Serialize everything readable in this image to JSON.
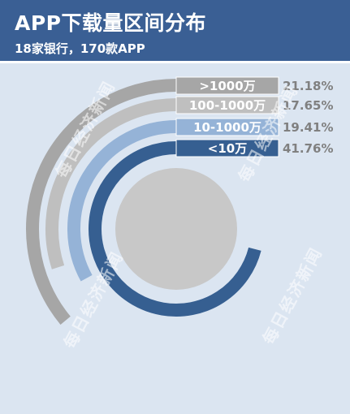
{
  "header": {
    "title": "APP下载量区间分布",
    "subtitle": "18家银行，170款APP"
  },
  "watermarks": [
    "每日经济新闻",
    "每日经济新闻",
    "每日经济新闻",
    "每日经济新闻"
  ],
  "chart_data": {
    "type": "radial-bar",
    "title": "APP下载量区间分布",
    "subtitle": "18家银行，170款APP",
    "categories": [
      ">1000万",
      "100-1000万",
      "10-1000万",
      "<10万"
    ],
    "values": [
      21.18,
      17.65,
      19.41,
      41.76
    ],
    "value_labels": [
      "21.18%",
      "17.65%",
      "19.41%",
      "41.76%"
    ],
    "unit": "%",
    "colors": [
      "#a6a6a6",
      "#bfbfbf",
      "#95b3d7",
      "#365f91"
    ],
    "legend": "top-right",
    "grid": false
  }
}
